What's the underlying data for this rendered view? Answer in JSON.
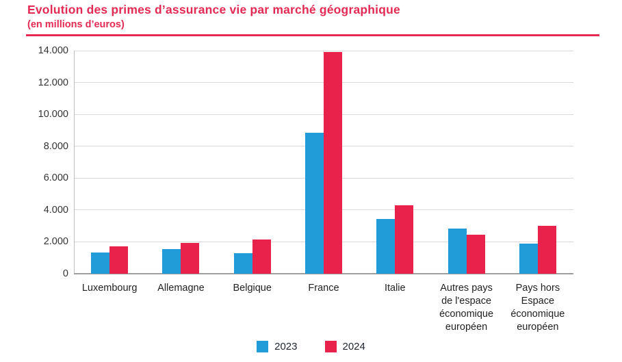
{
  "header": {
    "title": "Evolution des primes d’assurance vie par marché géographique",
    "subtitle": "(en millions d’euros)"
  },
  "colors": {
    "accent": "#E42A52",
    "series_2023": "#219CD9",
    "series_2024": "#E8224B",
    "grid": "#D9D9D9",
    "axis": "#9E9E9E",
    "tick_text": "#333333"
  },
  "chart_data": {
    "type": "bar",
    "title": "Evolution des primes d’assurance vie par marché géographique",
    "subtitle": "(en millions d’euros)",
    "categories": [
      "Luxembourg",
      "Allemagne",
      "Belgique",
      "France",
      "Italie",
      "Autres pays de l'espace économique européen",
      "Pays hors Espace économique européen"
    ],
    "series": [
      {
        "name": "2023",
        "color": "#219CD9",
        "values": [
          1350,
          1550,
          1300,
          8850,
          3450,
          2850,
          1900
        ]
      },
      {
        "name": "2024",
        "color": "#E8224B",
        "values": [
          1700,
          1950,
          2150,
          13900,
          4300,
          2450,
          3000
        ]
      }
    ],
    "ylim": [
      0,
      14000
    ],
    "yticks": [
      0,
      2000,
      4000,
      6000,
      8000,
      10000,
      12000,
      14000
    ],
    "ytick_labels": [
      "0",
      "2.000",
      "4.000",
      "6.000",
      "8.000",
      "10.000",
      "12.000",
      "14.000"
    ],
    "xlabel": "",
    "ylabel": "",
    "grid": true,
    "legend_position": "bottom"
  }
}
